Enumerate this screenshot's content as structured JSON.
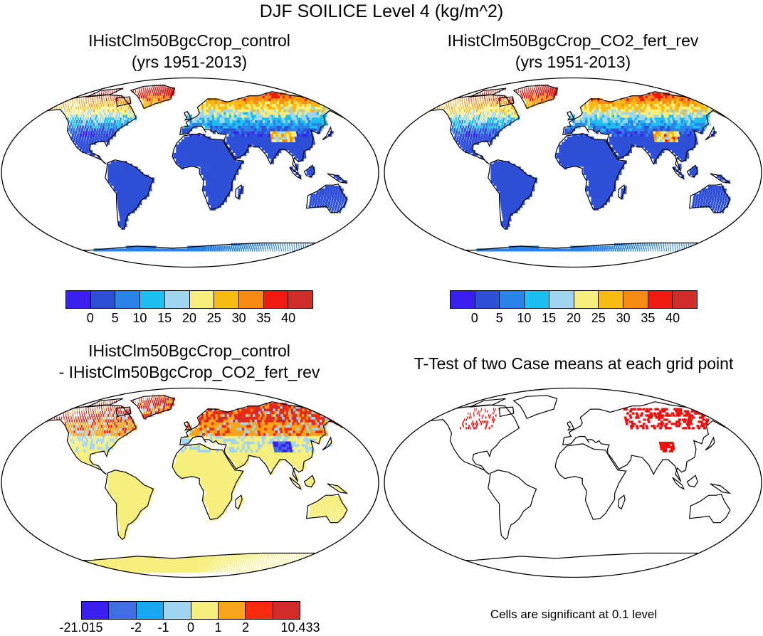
{
  "title": "DJF SOILICE Level 4 (kg/m^2)",
  "colors": {
    "levels_abs": [
      "#3b1ff0",
      "#2e4fd8",
      "#2a83e8",
      "#1dbff0",
      "#9fd5ee",
      "#f7ef7d",
      "#f8bb14",
      "#f78a11",
      "#f01b0f",
      "#cf2c2a"
    ],
    "levels_diff": [
      "#3b1ff0",
      "#3f6fe0",
      "#1aa7ef",
      "#9fd5ee",
      "#f7ef7d",
      "#f8a41a",
      "#f72a0f",
      "#cf2c2a"
    ],
    "ocean": "#ffffff",
    "coast": "#000000",
    "significant": "#ee1010"
  },
  "panels": [
    {
      "title_line1": "IHistClm50BgcCrop_control",
      "title_line2": "(yrs 1951-2013)",
      "colorbar_ticks": [
        "0",
        "5",
        "10",
        "15",
        "20",
        "25",
        "30",
        "35",
        "40"
      ]
    },
    {
      "title_line1": "IHistClm50BgcCrop_CO2_fert_rev",
      "title_line2": "(yrs 1951-2013)",
      "colorbar_ticks": [
        "0",
        "5",
        "10",
        "15",
        "20",
        "25",
        "30",
        "35",
        "40"
      ]
    },
    {
      "title_line1": "IHistClm50BgcCrop_control",
      "title_line2": "- IHistClm50BgcCrop_CO2_fert_rev",
      "colorbar_ticks": [
        "-21.015",
        "-2",
        "-1",
        "0",
        "1",
        "2",
        "10.433"
      ]
    },
    {
      "title_line1": "T-Test of two Case means at each grid point",
      "note": "Cells are significant at 0.1 level"
    }
  ]
}
